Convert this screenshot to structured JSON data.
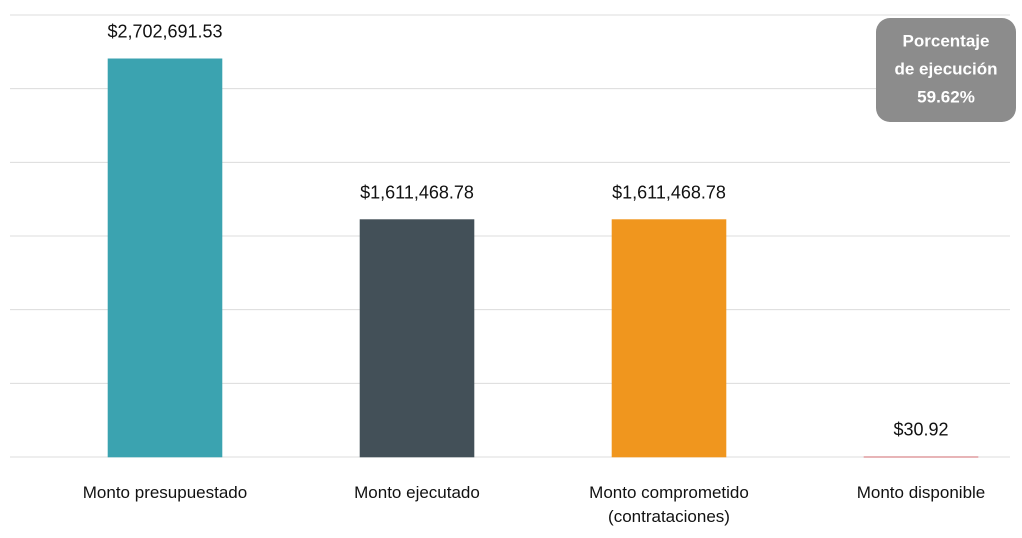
{
  "chart_data": {
    "type": "bar",
    "categories": [
      "Monto presupuestado",
      "Monto ejecutado",
      "Monto comprometido (contrataciones)",
      "Monto disponible"
    ],
    "values": [
      2702691.53,
      1611468.78,
      1611468.78,
      30.92
    ],
    "value_labels": [
      "$2,702,691.53",
      "$1,611,468.78",
      "$1,611,468.78",
      "$30.92"
    ],
    "colors": [
      "#3ba3b0",
      "#435058",
      "#f0961e",
      "#c8202a"
    ],
    "ylim": [
      0,
      3000000
    ],
    "yticks": [
      0,
      500000,
      1000000,
      1500000,
      2000000,
      2500000,
      3000000
    ],
    "grid": true,
    "annotation": {
      "lines": [
        "Porcentaje",
        "de ejecución",
        "59.62%"
      ]
    }
  }
}
